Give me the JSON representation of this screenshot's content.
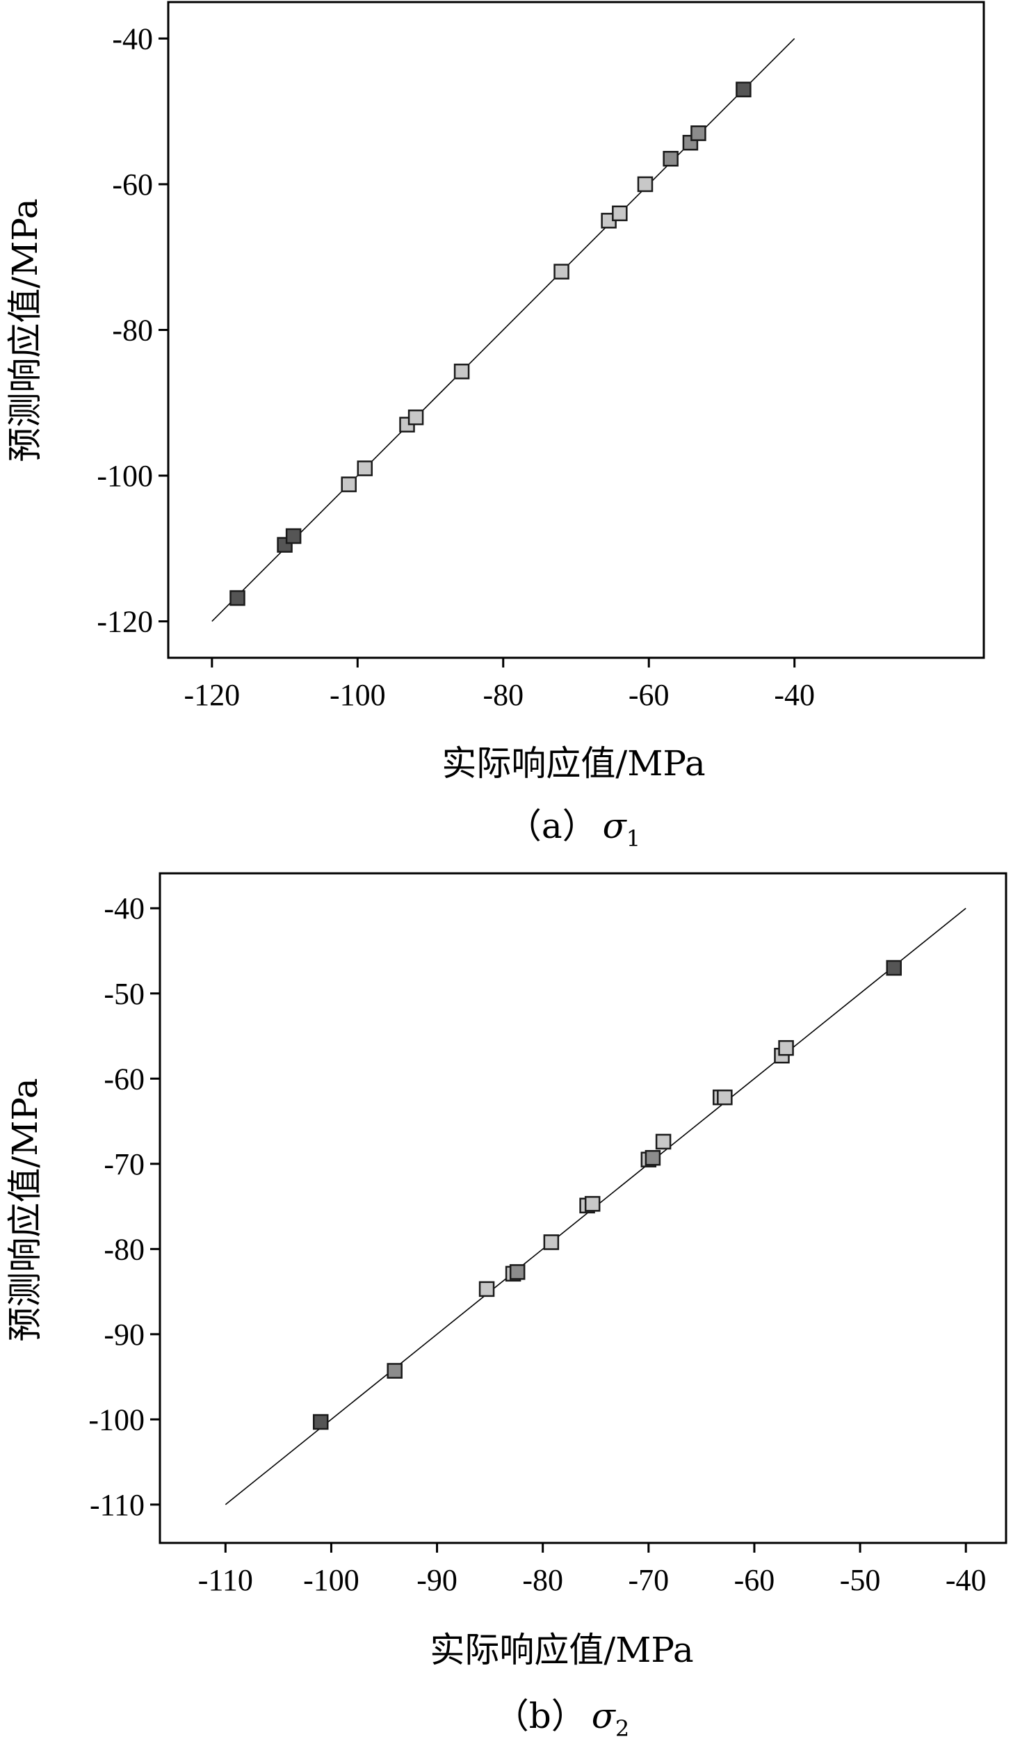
{
  "chart_data": [
    {
      "type": "scatter",
      "xlabel": "实际响应值/MPa",
      "ylabel": "预测响应值/MPa",
      "caption": {
        "prefix": "（a）",
        "symbol": "σ",
        "subscript": "1"
      },
      "xlim": [
        -126,
        -14
      ],
      "ylim": [
        -125,
        -35
      ],
      "xticks": [
        -120,
        -100,
        -80,
        -60,
        -40
      ],
      "yticks": [
        -120,
        -100,
        -80,
        -60,
        -40
      ],
      "xtick_labels": [
        "-120",
        "-100",
        "-80",
        "-60",
        "-40"
      ],
      "ytick_labels": [
        "-120",
        "-100",
        "-80",
        "-60",
        "-40"
      ],
      "fit_line": [
        [
          -120,
          -120
        ],
        [
          -40,
          -40
        ]
      ],
      "points": [
        {
          "x": -116.5,
          "y": -116.8,
          "shade": "dark"
        },
        {
          "x": -110.0,
          "y": -109.5,
          "shade": "dark"
        },
        {
          "x": -108.8,
          "y": -108.3,
          "shade": "dark"
        },
        {
          "x": -101.2,
          "y": -101.2,
          "shade": "light"
        },
        {
          "x": -99.0,
          "y": -99.0,
          "shade": "light"
        },
        {
          "x": -93.2,
          "y": -93.0,
          "shade": "light"
        },
        {
          "x": -92.0,
          "y": -92.0,
          "shade": "light"
        },
        {
          "x": -85.7,
          "y": -85.7,
          "shade": "light"
        },
        {
          "x": -72.0,
          "y": -72.0,
          "shade": "light"
        },
        {
          "x": -65.5,
          "y": -65.0,
          "shade": "light"
        },
        {
          "x": -64.0,
          "y": -64.0,
          "shade": "light"
        },
        {
          "x": -60.5,
          "y": -60.0,
          "shade": "light"
        },
        {
          "x": -57.0,
          "y": -56.5,
          "shade": "mid"
        },
        {
          "x": -54.3,
          "y": -54.3,
          "shade": "mid"
        },
        {
          "x": -53.2,
          "y": -53.0,
          "shade": "mid"
        },
        {
          "x": -47.0,
          "y": -47.0,
          "shade": "dark"
        }
      ]
    },
    {
      "type": "scatter",
      "xlabel": "实际响应值/MPa",
      "ylabel": "预测响应值/MPa",
      "caption": {
        "prefix": "（b）",
        "symbol": "σ",
        "subscript": "2"
      },
      "xlim": [
        -116.2,
        -36.2
      ],
      "ylim": [
        -114.5,
        -35.9
      ],
      "xticks": [
        -110,
        -100,
        -90,
        -80,
        -70,
        -60,
        -50,
        -40
      ],
      "yticks": [
        -110,
        -100,
        -90,
        -80,
        -70,
        -60,
        -50,
        -40
      ],
      "xtick_labels": [
        "-110",
        "-100",
        "-90",
        "-80",
        "-70",
        "-60",
        "-50",
        "-40"
      ],
      "ytick_labels": [
        "-110",
        "-100",
        "-90",
        "-80",
        "-70",
        "-60",
        "-50",
        "-40"
      ],
      "fit_line": [
        [
          -110,
          -110
        ],
        [
          -40,
          -40
        ]
      ],
      "points": [
        {
          "x": -101.0,
          "y": -100.3,
          "shade": "dark"
        },
        {
          "x": -94.0,
          "y": -94.3,
          "shade": "mid"
        },
        {
          "x": -85.3,
          "y": -84.7,
          "shade": "light"
        },
        {
          "x": -82.8,
          "y": -82.9,
          "shade": "light"
        },
        {
          "x": -82.4,
          "y": -82.7,
          "shade": "mid"
        },
        {
          "x": -79.2,
          "y": -79.2,
          "shade": "light"
        },
        {
          "x": -75.8,
          "y": -74.9,
          "shade": "light"
        },
        {
          "x": -75.3,
          "y": -74.7,
          "shade": "light"
        },
        {
          "x": -70.0,
          "y": -69.5,
          "shade": "light"
        },
        {
          "x": -69.6,
          "y": -69.3,
          "shade": "mid"
        },
        {
          "x": -68.6,
          "y": -67.4,
          "shade": "light"
        },
        {
          "x": -63.2,
          "y": -62.2,
          "shade": "light"
        },
        {
          "x": -62.8,
          "y": -62.2,
          "shade": "light"
        },
        {
          "x": -57.4,
          "y": -57.3,
          "shade": "light"
        },
        {
          "x": -57.0,
          "y": -56.4,
          "shade": "light"
        },
        {
          "x": -46.8,
          "y": -47.0,
          "shade": "dark"
        }
      ]
    }
  ],
  "marker_colors": {
    "dark": "#555555",
    "mid": "#8c8c8c",
    "light": "#c8c8c8",
    "edge": "#1a1a1a"
  }
}
